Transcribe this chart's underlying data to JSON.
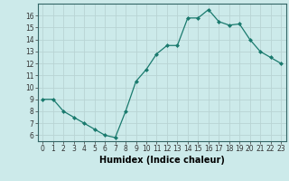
{
  "x": [
    0,
    1,
    2,
    3,
    4,
    5,
    6,
    7,
    8,
    9,
    10,
    11,
    12,
    13,
    14,
    15,
    16,
    17,
    18,
    19,
    20,
    21,
    22,
    23
  ],
  "y": [
    9.0,
    9.0,
    8.0,
    7.5,
    7.0,
    6.5,
    6.0,
    5.8,
    8.0,
    10.5,
    11.5,
    12.8,
    13.5,
    13.5,
    15.8,
    15.8,
    16.5,
    15.5,
    15.2,
    15.3,
    14.0,
    13.0,
    12.5,
    12.0
  ],
  "xlabel": "Humidex (Indice chaleur)",
  "ylim": [
    5.5,
    17.0
  ],
  "yticks": [
    6,
    7,
    8,
    9,
    10,
    11,
    12,
    13,
    14,
    15,
    16
  ],
  "xlim": [
    -0.5,
    23.5
  ],
  "xticks": [
    0,
    1,
    2,
    3,
    4,
    5,
    6,
    7,
    8,
    9,
    10,
    11,
    12,
    13,
    14,
    15,
    16,
    17,
    18,
    19,
    20,
    21,
    22,
    23
  ],
  "xtick_labels": [
    "0",
    "1",
    "2",
    "3",
    "4",
    "5",
    "6",
    "7",
    "8",
    "9",
    "10",
    "11",
    "12",
    "13",
    "14",
    "15",
    "16",
    "17",
    "18",
    "19",
    "20",
    "21",
    "22",
    "23"
  ],
  "line_color": "#1a7a6e",
  "marker": "D",
  "marker_size": 2.0,
  "bg_color": "#cceaea",
  "grid_color": "#b8d4d4",
  "xlabel_fontsize": 7.0,
  "tick_fontsize": 5.5
}
